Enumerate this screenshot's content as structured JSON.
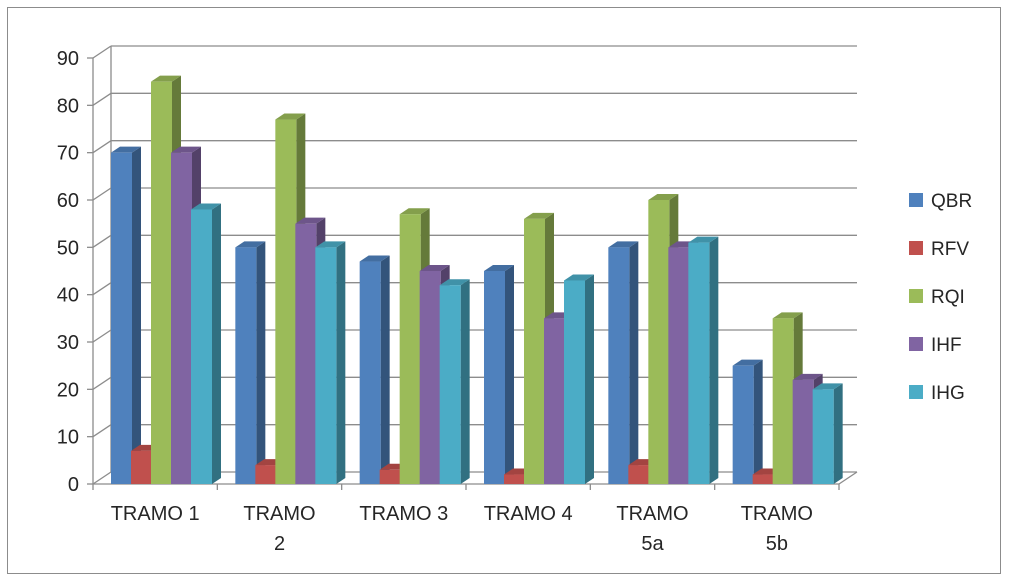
{
  "chart_data": {
    "type": "bar",
    "title": "",
    "xlabel": "",
    "ylabel": "",
    "categories": [
      [
        "TRAMO 1"
      ],
      [
        "TRAMO",
        "2"
      ],
      [
        "TRAMO 3"
      ],
      [
        "TRAMO 4"
      ],
      [
        "TRAMO",
        "5a"
      ],
      [
        "TRAMO",
        "5b"
      ]
    ],
    "ylim": [
      0,
      90
    ],
    "yticks": [
      0,
      10,
      20,
      30,
      40,
      50,
      60,
      70,
      80,
      90
    ],
    "grid": true,
    "legend_position": "right",
    "style": "3d-clustered-column",
    "series": [
      {
        "name": "QBR",
        "color": "#4f81bd",
        "values": [
          70,
          50,
          47,
          45,
          50,
          25
        ]
      },
      {
        "name": "RFV",
        "color": "#c0504d",
        "values": [
          7,
          4,
          3,
          2,
          4,
          2
        ]
      },
      {
        "name": "RQI",
        "color": "#9bbb59",
        "values": [
          85,
          77,
          57,
          56,
          60,
          35
        ]
      },
      {
        "name": "IHF",
        "color": "#8064a2",
        "values": [
          70,
          55,
          45,
          35,
          50,
          22
        ]
      },
      {
        "name": "IHG",
        "color": "#4bacc6",
        "values": [
          58,
          50,
          42,
          43,
          51,
          20
        ]
      }
    ]
  }
}
